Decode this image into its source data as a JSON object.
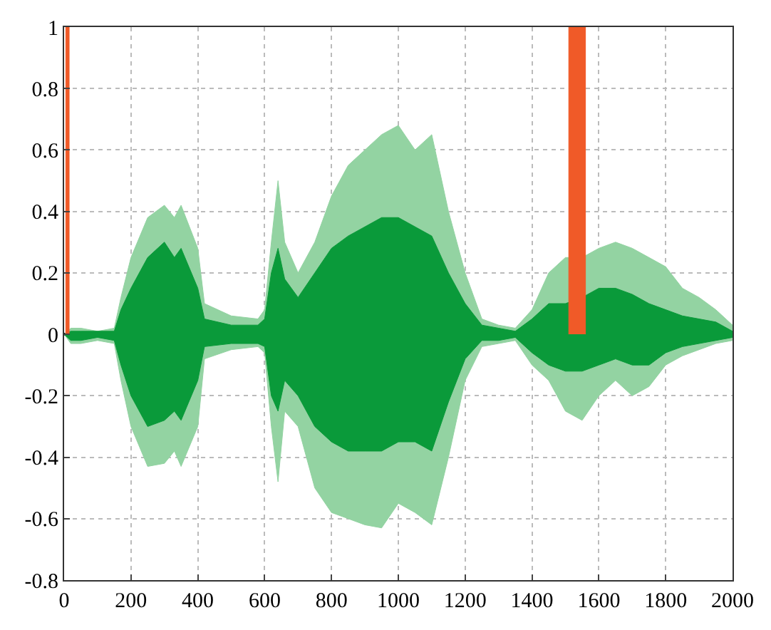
{
  "chart_data": {
    "type": "area",
    "x": [
      0,
      20,
      50,
      100,
      150,
      170,
      200,
      250,
      300,
      330,
      350,
      400,
      420,
      500,
      580,
      600,
      620,
      640,
      660,
      700,
      750,
      800,
      850,
      900,
      950,
      1000,
      1050,
      1100,
      1150,
      1200,
      1250,
      1300,
      1350,
      1400,
      1450,
      1500,
      1550,
      1600,
      1650,
      1700,
      1750,
      1800,
      1850,
      1900,
      1950,
      2000
    ],
    "series": [
      {
        "color": "#93d3a2",
        "values": [
          0,
          0.02,
          0.02,
          0.01,
          0.02,
          0.12,
          0.25,
          0.38,
          0.42,
          0.38,
          0.42,
          0.28,
          0.1,
          0.06,
          0.05,
          0.08,
          0.3,
          0.5,
          0.3,
          0.2,
          0.3,
          0.45,
          0.55,
          0.6,
          0.65,
          0.68,
          0.6,
          0.65,
          0.4,
          0.2,
          0.05,
          0.03,
          0.02,
          0.08,
          0.2,
          0.25,
          0.25,
          0.28,
          0.3,
          0.28,
          0.25,
          0.22,
          0.15,
          0.12,
          0.08,
          0.03
        ]
      },
      {
        "color": "#93d3a2",
        "values": [
          0,
          -0.03,
          -0.03,
          -0.02,
          -0.03,
          -0.15,
          -0.3,
          -0.43,
          -0.42,
          -0.38,
          -0.43,
          -0.3,
          -0.08,
          -0.05,
          -0.04,
          -0.06,
          -0.3,
          -0.48,
          -0.25,
          -0.3,
          -0.5,
          -0.58,
          -0.6,
          -0.62,
          -0.63,
          -0.55,
          -0.58,
          -0.62,
          -0.4,
          -0.15,
          -0.04,
          -0.03,
          -0.02,
          -0.1,
          -0.15,
          -0.25,
          -0.28,
          -0.2,
          -0.15,
          -0.2,
          -0.17,
          -0.1,
          -0.07,
          -0.05,
          -0.03,
          -0.02
        ]
      },
      {
        "color": "#0a9a3a",
        "values": [
          0,
          0.01,
          0.01,
          0.01,
          0.01,
          0.08,
          0.15,
          0.25,
          0.3,
          0.25,
          0.28,
          0.15,
          0.05,
          0.03,
          0.03,
          0.05,
          0.2,
          0.28,
          0.18,
          0.12,
          0.2,
          0.28,
          0.32,
          0.35,
          0.38,
          0.38,
          0.35,
          0.32,
          0.2,
          0.1,
          0.03,
          0.02,
          0.01,
          0.05,
          0.1,
          0.1,
          0.12,
          0.15,
          0.15,
          0.13,
          0.1,
          0.08,
          0.06,
          0.05,
          0.04,
          0.01
        ]
      },
      {
        "color": "#0a9a3a",
        "values": [
          0,
          -0.02,
          -0.02,
          -0.01,
          -0.02,
          -0.1,
          -0.2,
          -0.3,
          -0.28,
          -0.25,
          -0.28,
          -0.15,
          -0.04,
          -0.03,
          -0.03,
          -0.04,
          -0.2,
          -0.25,
          -0.15,
          -0.2,
          -0.3,
          -0.35,
          -0.38,
          -0.38,
          -0.38,
          -0.35,
          -0.35,
          -0.38,
          -0.22,
          -0.08,
          -0.02,
          -0.02,
          -0.01,
          -0.06,
          -0.1,
          -0.12,
          -0.12,
          -0.1,
          -0.08,
          -0.1,
          -0.1,
          -0.06,
          -0.04,
          -0.03,
          -0.02,
          -0.01
        ]
      },
      {
        "color": "#f05a28",
        "x": [
          5,
          5,
          15,
          15
        ],
        "values": [
          0,
          1,
          1,
          0
        ]
      },
      {
        "color": "#f05a28",
        "x": [
          1510,
          1510,
          1560,
          1560
        ],
        "values": [
          0,
          1,
          1,
          0
        ]
      }
    ],
    "xlim": [
      0,
      2000
    ],
    "xticks": [
      0,
      200,
      400,
      600,
      800,
      1000,
      1200,
      1400,
      1600,
      1800,
      2000
    ],
    "ylim": [
      -0.8,
      1
    ],
    "yticks": [
      -0.8,
      -0.6,
      -0.4,
      -0.2,
      0,
      0.2,
      0.4,
      0.6,
      0.8,
      1
    ],
    "grid": true
  }
}
